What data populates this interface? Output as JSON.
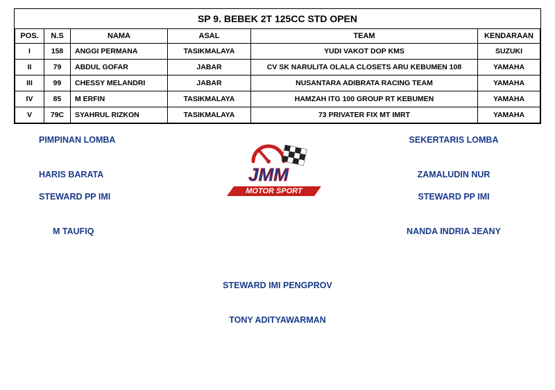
{
  "title": "SP 9. BEBEK 2T 125CC STD OPEN",
  "columns": [
    "POS.",
    "N.S",
    "NAMA",
    "ASAL",
    "TEAM",
    "KENDARAAN"
  ],
  "rows": [
    {
      "pos": "I",
      "ns": "158",
      "nama": "ANGGI PERMANA",
      "asal": "TASIKMALAYA",
      "team": "YUDI VAKOT DOP KMS",
      "kend": "SUZUKI"
    },
    {
      "pos": "II",
      "ns": "79",
      "nama": "ABDUL GOFAR",
      "asal": "JABAR",
      "team": "CV SK NARULITA OLALA CLOSETS ARU KEBUMEN 108",
      "kend": "YAMAHA"
    },
    {
      "pos": "III",
      "ns": "99",
      "nama": "CHESSY MELANDRI",
      "asal": "JABAR",
      "team": "NUSANTARA ADIBRATA RACING TEAM",
      "kend": "YAMAHA"
    },
    {
      "pos": "IV",
      "ns": "85",
      "nama": "M ERFIN",
      "asal": "TASIKMALAYA",
      "team": "HAMZAH ITG 100 GROUP RT KEBUMEN",
      "kend": "YAMAHA"
    },
    {
      "pos": "V",
      "ns": "79C",
      "nama": "SYAHRUL RIZKON",
      "asal": "TASIKMALAYA",
      "team": "73 PRIVATER FIX MT IMRT",
      "kend": "YAMAHA"
    }
  ],
  "officials": {
    "left": [
      {
        "role": "PIMPINAN LOMBA",
        "name": "HARIS BARATA"
      },
      {
        "role": "STEWARD PP IMI",
        "name": "M TAUFIQ"
      }
    ],
    "right": [
      {
        "role": "SEKERTARIS LOMBA",
        "name": "ZAMALUDIN NUR"
      },
      {
        "role": "STEWARD PP IMI",
        "name": "NANDA INDRIA JEANY"
      }
    ],
    "center": {
      "role": "STEWARD IMI PENGPROV",
      "name": "TONY ADITYAWARMAN"
    }
  },
  "logo": {
    "top_text": "JMM",
    "bottom_text": "MOTOR SPORT",
    "red": "#c81e1e",
    "blue": "#1a3a8a",
    "checker_dark": "#222222"
  },
  "colors": {
    "text": "#000000",
    "official_text": "#1a3a8a",
    "border": "#000000",
    "background": "#ffffff"
  }
}
